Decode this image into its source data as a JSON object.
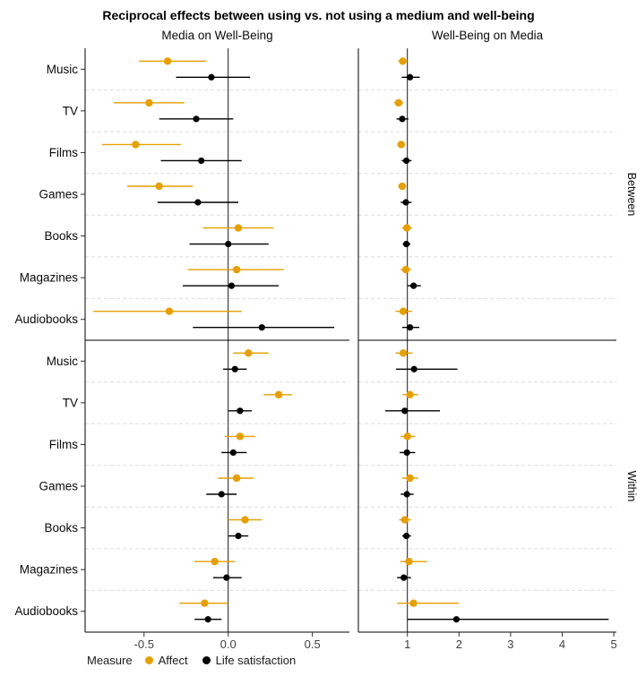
{
  "chart_data": {
    "type": "forest",
    "title": "Reciprocal effects between using vs. not using a medium and well-being",
    "legend": {
      "title": "Measure"
    },
    "series": [
      {
        "name": "Affect",
        "color": "#E69F00"
      },
      {
        "name": "Life satisfaction",
        "color": "#000000"
      }
    ],
    "categories": [
      "Music",
      "TV",
      "Films",
      "Games",
      "Books",
      "Magazines",
      "Audiobooks"
    ],
    "rows": [
      {
        "key": "between",
        "label": "Between"
      },
      {
        "key": "within",
        "label": "Within"
      }
    ],
    "columns": [
      {
        "key": "media_on_wb",
        "label": "Media on Well-Being",
        "ref_line": 0,
        "domain": [
          -0.85,
          0.72
        ],
        "ticks": [
          -0.5,
          0.0,
          0.5
        ],
        "tick_labels": [
          "-0.5",
          "0.0",
          "0.5"
        ]
      },
      {
        "key": "wb_on_media",
        "label": "Well-Being on Media",
        "ref_line": 1,
        "domain": [
          0.05,
          5.05
        ],
        "ticks": [
          1,
          2,
          3,
          4,
          5
        ],
        "tick_labels": [
          "1",
          "2",
          "3",
          "4",
          "5"
        ]
      }
    ],
    "estimates": {
      "between": {
        "media_on_wb": {
          "Affect": [
            [
              -0.36,
              -0.53,
              -0.13
            ],
            [
              -0.47,
              -0.68,
              -0.26
            ],
            [
              -0.55,
              -0.75,
              -0.28
            ],
            [
              -0.41,
              -0.6,
              -0.21
            ],
            [
              0.06,
              -0.15,
              0.27
            ],
            [
              0.05,
              -0.24,
              0.33
            ],
            [
              -0.35,
              -0.8,
              0.08
            ]
          ],
          "Life satisfaction": [
            [
              -0.1,
              -0.31,
              0.13
            ],
            [
              -0.19,
              -0.41,
              0.03
            ],
            [
              -0.16,
              -0.4,
              0.08
            ],
            [
              -0.18,
              -0.42,
              0.06
            ],
            [
              0.0,
              -0.23,
              0.24
            ],
            [
              0.02,
              -0.27,
              0.3
            ],
            [
              0.2,
              -0.21,
              0.63
            ]
          ]
        },
        "wb_on_media": {
          "Affect": [
            [
              0.91,
              0.82,
              1.0
            ],
            [
              0.83,
              0.74,
              0.92
            ],
            [
              0.88,
              0.81,
              0.96
            ],
            [
              0.9,
              0.82,
              0.98
            ],
            [
              0.99,
              0.9,
              1.09
            ],
            [
              0.97,
              0.87,
              1.07
            ],
            [
              0.92,
              0.77,
              1.09
            ]
          ],
          "Life satisfaction": [
            [
              1.05,
              0.89,
              1.24
            ],
            [
              0.9,
              0.79,
              1.02
            ],
            [
              0.98,
              0.89,
              1.08
            ],
            [
              0.97,
              0.87,
              1.08
            ],
            [
              0.98,
              0.91,
              1.06
            ],
            [
              1.12,
              1.0,
              1.26
            ],
            [
              1.05,
              0.9,
              1.23
            ]
          ]
        }
      },
      "within": {
        "media_on_wb": {
          "Affect": [
            [
              0.12,
              0.03,
              0.24
            ],
            [
              0.3,
              0.21,
              0.38
            ],
            [
              0.07,
              -0.02,
              0.16
            ],
            [
              0.05,
              -0.06,
              0.15
            ],
            [
              0.1,
              0.0,
              0.2
            ],
            [
              -0.08,
              -0.2,
              0.04
            ],
            [
              -0.14,
              -0.29,
              0.0
            ]
          ],
          "Life satisfaction": [
            [
              0.04,
              -0.03,
              0.11
            ],
            [
              0.07,
              0.0,
              0.14
            ],
            [
              0.03,
              -0.04,
              0.11
            ],
            [
              -0.04,
              -0.13,
              0.05
            ],
            [
              0.06,
              0.0,
              0.12
            ],
            [
              -0.01,
              -0.09,
              0.08
            ],
            [
              -0.12,
              -0.2,
              -0.04
            ]
          ]
        },
        "wb_on_media": {
          "Affect": [
            [
              0.92,
              0.77,
              1.1
            ],
            [
              1.05,
              0.91,
              1.21
            ],
            [
              1.0,
              0.87,
              1.15
            ],
            [
              1.05,
              0.9,
              1.21
            ],
            [
              0.95,
              0.84,
              1.07
            ],
            [
              1.03,
              0.86,
              1.38
            ],
            [
              1.12,
              0.8,
              2.0
            ]
          ],
          "Life satisfaction": [
            [
              1.13,
              0.78,
              1.97
            ],
            [
              0.95,
              0.57,
              1.63
            ],
            [
              0.99,
              0.85,
              1.15
            ],
            [
              0.99,
              0.87,
              1.12
            ],
            [
              0.98,
              0.9,
              1.07
            ],
            [
              0.93,
              0.8,
              1.07
            ],
            [
              1.95,
              1.0,
              4.9
            ]
          ]
        }
      }
    }
  }
}
